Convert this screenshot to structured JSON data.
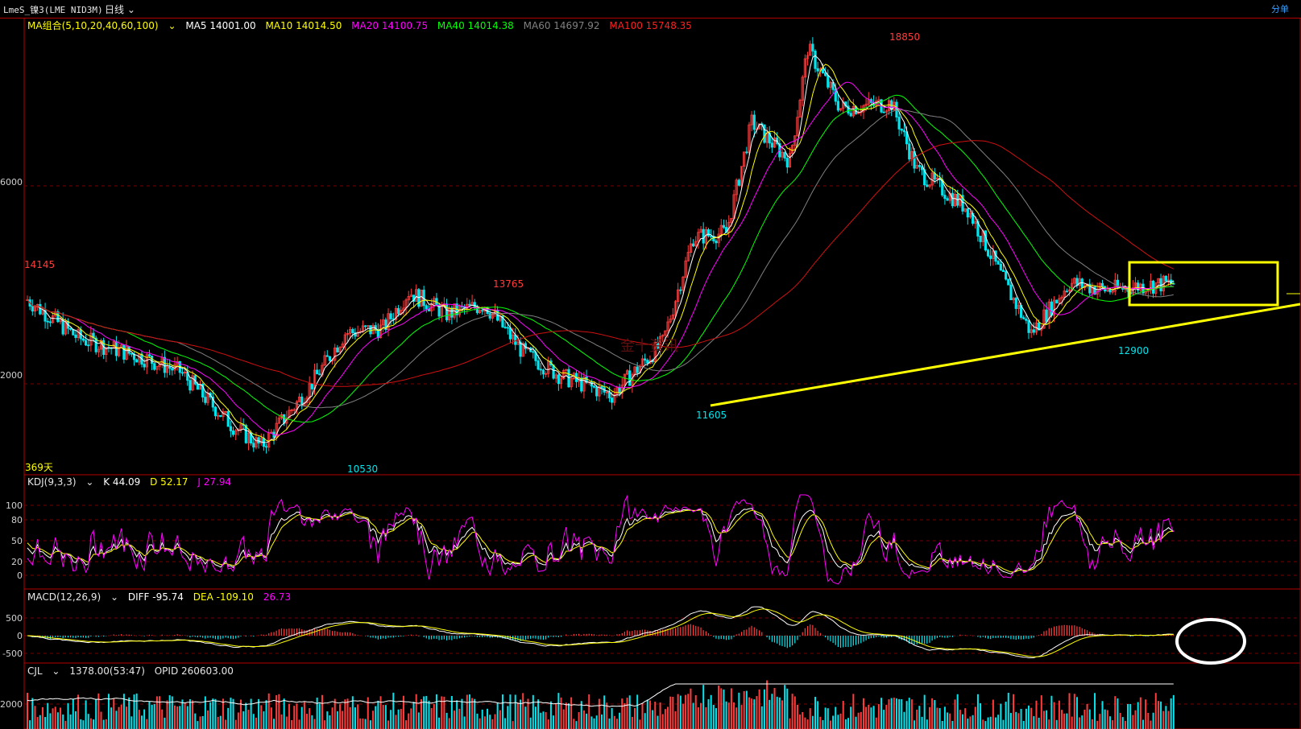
{
  "header": {
    "symbol": "LmeS_镍3(LME NID3M)",
    "period": "日线",
    "period_chevron": "⌄",
    "corner": "分单"
  },
  "colors": {
    "up": "#ff3c3c",
    "down": "#00e5ee",
    "ma5": "#ffffff",
    "ma10": "#ffff00",
    "ma20": "#ff00ff",
    "ma40": "#00ff00",
    "ma60": "#808080",
    "ma100": "#d01010",
    "grid": "#7a0000",
    "frame": "#b40000",
    "annotation": "#ffff00"
  },
  "main": {
    "legend": {
      "label": "MA组合(5,10,20,40,60,100)",
      "ma5": "MA5 14001.00",
      "ma10": "MA10 14014.50",
      "ma20": "MA20 14100.75",
      "ma40": "MA40 14014.38",
      "ma60": "MA60 14697.92",
      "ma100": "MA100 15748.35"
    },
    "y_labels": [
      "6000",
      "2000"
    ],
    "price_labels": {
      "high_left": "14145",
      "p13765": "13765",
      "p18850": "18850",
      "p10530": "10530",
      "p11605": "11605",
      "p12900": "12900"
    },
    "days": "369天",
    "watermark": "金十资讯",
    "prices": {
      "start": 13600,
      "low1": 10530,
      "high1": 13765,
      "low2": 11605,
      "peak": 18850,
      "low3": 12900,
      "end": 13950
    }
  },
  "kdj": {
    "label": "KDJ(9,3,3)",
    "k": "K 44.09",
    "d": "D 52.17",
    "j": "J 27.94",
    "y_labels": [
      "100",
      "80",
      "50",
      "20",
      "0"
    ]
  },
  "macd": {
    "label": "MACD(12,26,9)",
    "diff": "DIFF -95.74",
    "dea": "DEA -109.10",
    "macd": "26.73",
    "y_labels": [
      "500",
      "0",
      "-500"
    ]
  },
  "volume": {
    "label": "CJL",
    "cjl": "1378.00(53:47)",
    "opid": "OPID 260603.00",
    "y_labels": [
      "2000"
    ]
  }
}
